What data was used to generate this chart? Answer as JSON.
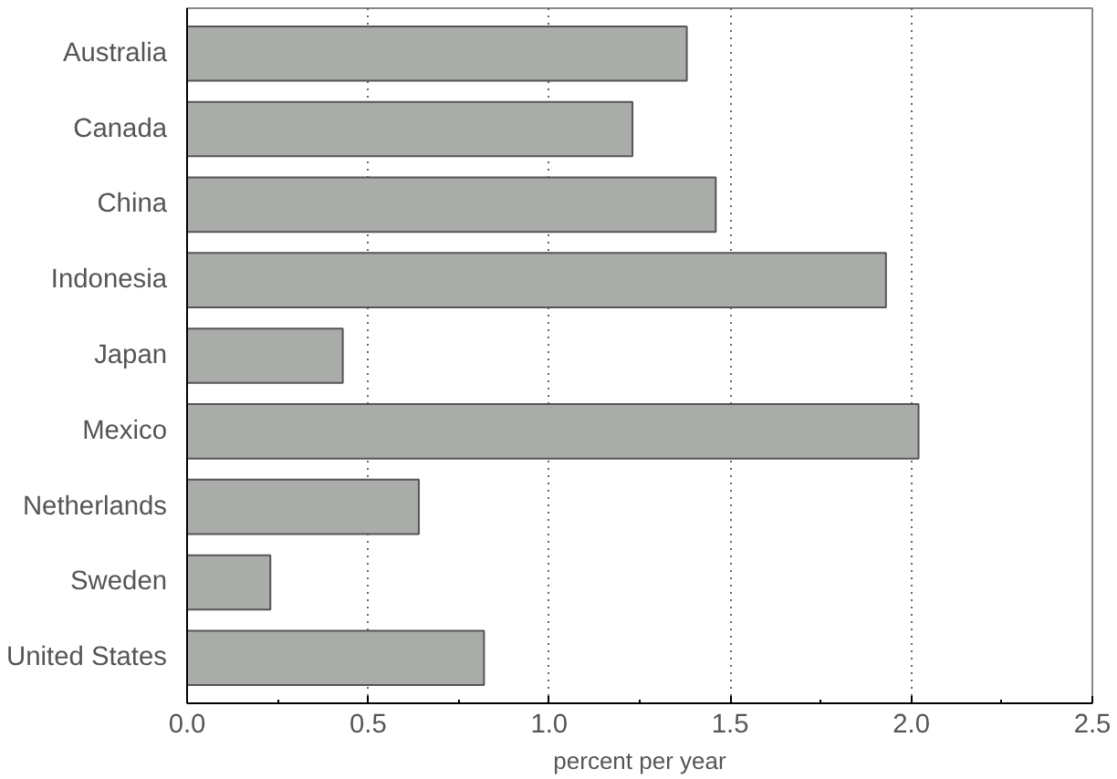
{
  "chart_data": {
    "type": "bar",
    "orientation": "horizontal",
    "xlabel": "percent per year",
    "categories": [
      "Australia",
      "Canada",
      "China",
      "Indonesia",
      "Japan",
      "Mexico",
      "Netherlands",
      "Sweden",
      "United States"
    ],
    "values": [
      1.38,
      1.23,
      1.46,
      1.93,
      0.43,
      2.02,
      0.64,
      0.23,
      0.82
    ],
    "color": "#a9aca9",
    "xlim": [
      0,
      2.5
    ],
    "xticks": [
      {
        "value": 0,
        "label": "0.0"
      },
      {
        "value": 0.5,
        "label": "0.5"
      },
      {
        "value": 1,
        "label": "1.0"
      },
      {
        "value": 1.5,
        "label": "1.5"
      },
      {
        "value": 2,
        "label": "2.0"
      },
      {
        "value": 2.5,
        "label": "2.5"
      }
    ],
    "grid": "x"
  }
}
